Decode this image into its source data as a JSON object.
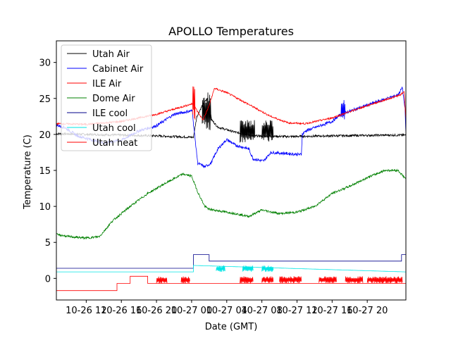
{
  "chart_data": {
    "type": "line",
    "title": "APOLLO Temperatures",
    "xlabel": "Date (GMT)",
    "ylabel": "Temperature (C)",
    "xlim": [
      8.6,
      48.4
    ],
    "ylim": [
      -3,
      33
    ],
    "yticks": [
      0,
      5,
      10,
      15,
      20,
      25,
      30
    ],
    "xticks": [
      {
        "x": 12,
        "label": "10-26 12"
      },
      {
        "x": 16,
        "label": "10-26 16"
      },
      {
        "x": 20,
        "label": "10-26 20"
      },
      {
        "x": 24,
        "label": "10-27 00"
      },
      {
        "x": 28,
        "label": "10-27 04"
      },
      {
        "x": 32,
        "label": "10-27 08"
      },
      {
        "x": 36,
        "label": "10-27 12"
      },
      {
        "x": 40,
        "label": "10-27 16"
      },
      {
        "x": 44,
        "label": "10-27 20"
      }
    ],
    "legend_position": "top-left",
    "series": [
      {
        "name": "Utah Air",
        "color": "#000000",
        "noise": 0.15,
        "points": [
          [
            8.6,
            20.1
          ],
          [
            20,
            19.8
          ],
          [
            24.2,
            19.6
          ],
          [
            24.6,
            22.5
          ],
          [
            25.2,
            24.0
          ],
          [
            25.8,
            25.0
          ],
          [
            26.3,
            22.0
          ],
          [
            27,
            21.0
          ],
          [
            29,
            20.3
          ],
          [
            31,
            19.8
          ],
          [
            35,
            19.7
          ],
          [
            40,
            19.8
          ],
          [
            46,
            19.9
          ],
          [
            48.4,
            19.9
          ]
        ],
        "spikes": [
          [
            29.5,
            31.2,
            18.8,
            22.0
          ],
          [
            32,
            33.3,
            19.0,
            22.0
          ],
          [
            25.2,
            26.2,
            20.5,
            26.0
          ]
        ]
      },
      {
        "name": "Cabinet Air",
        "color": "#0000ff",
        "noise": 0.2,
        "points": [
          [
            8.6,
            21.3
          ],
          [
            9.5,
            21.0
          ],
          [
            11,
            19.8
          ],
          [
            14,
            18.8
          ],
          [
            16,
            19.2
          ],
          [
            18,
            20.5
          ],
          [
            20,
            21.2
          ],
          [
            22,
            22.8
          ],
          [
            24.1,
            23.3
          ],
          [
            24.2,
            21.5
          ],
          [
            24.7,
            16.0
          ],
          [
            25.5,
            15.5
          ],
          [
            26.2,
            16.0
          ],
          [
            27,
            18.0
          ],
          [
            28,
            19.3
          ],
          [
            29,
            18.5
          ],
          [
            30.5,
            18.0
          ],
          [
            31,
            16.6
          ],
          [
            32.2,
            16.3
          ],
          [
            33,
            17.5
          ],
          [
            36.5,
            17.2
          ],
          [
            36.6,
            20.0
          ],
          [
            37,
            20.5
          ],
          [
            40,
            21.8
          ],
          [
            41,
            22.8
          ],
          [
            45,
            24.5
          ],
          [
            47.5,
            25.5
          ],
          [
            48.0,
            26.5
          ],
          [
            48.3,
            23.5
          ],
          [
            48.4,
            20.0
          ]
        ],
        "spikes": [
          [
            41,
            41.5,
            22.0,
            24.8
          ]
        ]
      },
      {
        "name": "ILE Air",
        "color": "#ff0000",
        "noise": 0.12,
        "points": [
          [
            8.6,
            21.5
          ],
          [
            12,
            21.4
          ],
          [
            16,
            21.8
          ],
          [
            20,
            22.8
          ],
          [
            24.2,
            24.3
          ],
          [
            24.6,
            23.3
          ],
          [
            25.3,
            22.0
          ],
          [
            26,
            24.0
          ],
          [
            26.6,
            26.4
          ],
          [
            28,
            25.8
          ],
          [
            30,
            24.5
          ],
          [
            33,
            22.5
          ],
          [
            35,
            21.6
          ],
          [
            37,
            21.5
          ],
          [
            40,
            22.3
          ],
          [
            44,
            24.0
          ],
          [
            47.8,
            25.5
          ],
          [
            48.2,
            26.0
          ],
          [
            48.4,
            22.0
          ]
        ],
        "spikes": [
          [
            24.1,
            24.4,
            22.0,
            27.2
          ]
        ]
      },
      {
        "name": "Dome Air",
        "color": "#008000",
        "noise": 0.15,
        "points": [
          [
            8.6,
            6.1
          ],
          [
            10,
            5.8
          ],
          [
            12,
            5.6
          ],
          [
            13.5,
            5.8
          ],
          [
            15,
            8.0
          ],
          [
            17,
            10.0
          ],
          [
            19,
            11.8
          ],
          [
            21,
            13.2
          ],
          [
            23,
            14.5
          ],
          [
            24,
            14.2
          ],
          [
            24.7,
            12.0
          ],
          [
            25.5,
            10.0
          ],
          [
            26,
            9.6
          ],
          [
            27,
            9.4
          ],
          [
            29,
            9.0
          ],
          [
            30.5,
            8.6
          ],
          [
            32,
            9.5
          ],
          [
            34,
            9.0
          ],
          [
            36,
            9.2
          ],
          [
            38,
            10.0
          ],
          [
            40,
            11.8
          ],
          [
            42,
            12.8
          ],
          [
            44,
            14.0
          ],
          [
            46,
            15.0
          ],
          [
            47.5,
            15.0
          ],
          [
            48.4,
            13.8
          ]
        ],
        "spikes": []
      },
      {
        "name": "ILE cool",
        "color": "#00008b",
        "noise": 0,
        "points": [
          [
            8.6,
            1.4
          ],
          [
            24.2,
            1.4
          ],
          [
            24.2,
            3.3
          ],
          [
            26.0,
            3.3
          ],
          [
            26.0,
            2.4
          ],
          [
            47.9,
            2.4
          ],
          [
            47.9,
            3.3
          ],
          [
            48.4,
            3.3
          ]
        ],
        "spikes": []
      },
      {
        "name": "Utah cool",
        "color": "#00e5e5",
        "noise": 0,
        "points": [
          [
            8.6,
            0.9
          ],
          [
            24.2,
            0.9
          ],
          [
            24.2,
            1.8
          ],
          [
            48.4,
            0.9
          ]
        ],
        "spikes": [
          [
            26.8,
            27.8,
            0.9,
            1.8
          ],
          [
            29.8,
            31.0,
            0.9,
            1.8
          ],
          [
            32.0,
            33.3,
            0.9,
            1.8
          ]
        ]
      },
      {
        "name": "Utah heat",
        "color": "#ff0000",
        "noise": 0,
        "points": [
          [
            8.6,
            -1.7
          ],
          [
            15.5,
            -1.7
          ],
          [
            15.5,
            -0.7
          ],
          [
            17,
            -0.7
          ],
          [
            17,
            0.3
          ],
          [
            19,
            0.3
          ],
          [
            19,
            -0.7
          ],
          [
            48.4,
            -0.7
          ]
        ],
        "spikes": [
          [
            29.5,
            31.0,
            -0.7,
            0.3
          ],
          [
            32.0,
            33.3,
            -0.7,
            0.3
          ],
          [
            20.0,
            21.2,
            -0.7,
            0.3
          ],
          [
            22.8,
            23.8,
            -0.7,
            0.3
          ],
          [
            34.0,
            36.5,
            -0.7,
            0.3
          ],
          [
            38.5,
            40.5,
            -0.7,
            0.3
          ],
          [
            41.5,
            43.5,
            -0.7,
            0.3
          ],
          [
            44.0,
            48.0,
            -0.7,
            0.3
          ]
        ]
      }
    ]
  }
}
